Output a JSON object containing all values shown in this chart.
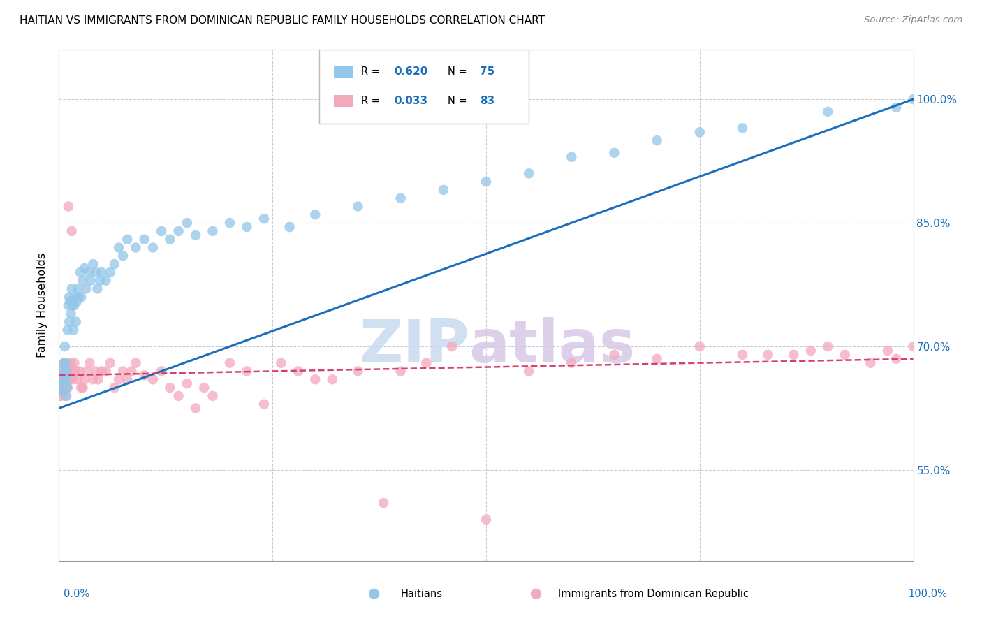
{
  "title": "HAITIAN VS IMMIGRANTS FROM DOMINICAN REPUBLIC FAMILY HOUSEHOLDS CORRELATION CHART",
  "source": "Source: ZipAtlas.com",
  "ylabel": "Family Households",
  "legend_label1": "Haitians",
  "legend_label2": "Immigrants from Dominican Republic",
  "r1": 0.62,
  "n1": 75,
  "r2": 0.033,
  "n2": 83,
  "color_blue": "#93c6e8",
  "color_pink": "#f4a8bc",
  "line_color_blue": "#1a6fba",
  "line_color_pink": "#d44070",
  "watermark_zip": "ZIP",
  "watermark_atlas": "atlas",
  "ytick_labels": [
    "55.0%",
    "70.0%",
    "85.0%",
    "100.0%"
  ],
  "ytick_values": [
    0.55,
    0.7,
    0.85,
    1.0
  ],
  "xlim": [
    0.0,
    1.0
  ],
  "ylim": [
    0.44,
    1.06
  ],
  "blue_x": [
    0.001,
    0.002,
    0.003,
    0.004,
    0.005,
    0.005,
    0.006,
    0.006,
    0.007,
    0.007,
    0.008,
    0.008,
    0.009,
    0.009,
    0.01,
    0.01,
    0.011,
    0.012,
    0.012,
    0.013,
    0.014,
    0.015,
    0.016,
    0.017,
    0.018,
    0.019,
    0.02,
    0.021,
    0.022,
    0.023,
    0.025,
    0.026,
    0.028,
    0.03,
    0.032,
    0.035,
    0.037,
    0.04,
    0.043,
    0.045,
    0.048,
    0.05,
    0.055,
    0.06,
    0.065,
    0.07,
    0.075,
    0.08,
    0.09,
    0.1,
    0.11,
    0.12,
    0.13,
    0.14,
    0.15,
    0.16,
    0.18,
    0.2,
    0.22,
    0.24,
    0.27,
    0.3,
    0.35,
    0.4,
    0.45,
    0.5,
    0.55,
    0.6,
    0.65,
    0.7,
    0.75,
    0.8,
    0.9,
    0.98,
    1.0
  ],
  "blue_y": [
    0.66,
    0.65,
    0.665,
    0.66,
    0.645,
    0.67,
    0.68,
    0.66,
    0.7,
    0.665,
    0.66,
    0.68,
    0.64,
    0.67,
    0.65,
    0.72,
    0.75,
    0.73,
    0.76,
    0.755,
    0.74,
    0.77,
    0.75,
    0.72,
    0.75,
    0.76,
    0.73,
    0.755,
    0.77,
    0.76,
    0.79,
    0.76,
    0.78,
    0.795,
    0.77,
    0.79,
    0.78,
    0.8,
    0.79,
    0.77,
    0.78,
    0.79,
    0.78,
    0.79,
    0.8,
    0.82,
    0.81,
    0.83,
    0.82,
    0.83,
    0.82,
    0.84,
    0.83,
    0.84,
    0.85,
    0.835,
    0.84,
    0.85,
    0.845,
    0.855,
    0.845,
    0.86,
    0.87,
    0.88,
    0.89,
    0.9,
    0.91,
    0.93,
    0.935,
    0.95,
    0.96,
    0.965,
    0.985,
    0.99,
    1.0
  ],
  "pink_x": [
    0.001,
    0.002,
    0.003,
    0.003,
    0.004,
    0.004,
    0.005,
    0.005,
    0.006,
    0.006,
    0.007,
    0.007,
    0.008,
    0.008,
    0.009,
    0.009,
    0.01,
    0.01,
    0.011,
    0.012,
    0.013,
    0.014,
    0.015,
    0.016,
    0.017,
    0.018,
    0.02,
    0.022,
    0.024,
    0.026,
    0.028,
    0.03,
    0.033,
    0.036,
    0.04,
    0.043,
    0.046,
    0.05,
    0.055,
    0.06,
    0.065,
    0.07,
    0.075,
    0.08,
    0.085,
    0.09,
    0.1,
    0.11,
    0.12,
    0.13,
    0.14,
    0.15,
    0.16,
    0.17,
    0.18,
    0.2,
    0.22,
    0.24,
    0.26,
    0.28,
    0.3,
    0.32,
    0.35,
    0.38,
    0.4,
    0.43,
    0.46,
    0.5,
    0.55,
    0.6,
    0.65,
    0.7,
    0.75,
    0.8,
    0.83,
    0.86,
    0.88,
    0.9,
    0.92,
    0.95,
    0.97,
    0.98,
    1.0
  ],
  "pink_y": [
    0.66,
    0.64,
    0.65,
    0.665,
    0.645,
    0.66,
    0.65,
    0.675,
    0.66,
    0.68,
    0.64,
    0.665,
    0.67,
    0.65,
    0.66,
    0.68,
    0.66,
    0.65,
    0.87,
    0.66,
    0.67,
    0.68,
    0.84,
    0.66,
    0.67,
    0.68,
    0.67,
    0.66,
    0.67,
    0.65,
    0.65,
    0.66,
    0.67,
    0.68,
    0.66,
    0.67,
    0.66,
    0.67,
    0.67,
    0.68,
    0.65,
    0.66,
    0.67,
    0.66,
    0.67,
    0.68,
    0.665,
    0.66,
    0.67,
    0.65,
    0.64,
    0.655,
    0.625,
    0.65,
    0.64,
    0.68,
    0.67,
    0.63,
    0.68,
    0.67,
    0.66,
    0.66,
    0.67,
    0.51,
    0.67,
    0.68,
    0.7,
    0.49,
    0.67,
    0.68,
    0.69,
    0.685,
    0.7,
    0.69,
    0.69,
    0.69,
    0.695,
    0.7,
    0.69,
    0.68,
    0.695,
    0.685,
    0.7
  ]
}
